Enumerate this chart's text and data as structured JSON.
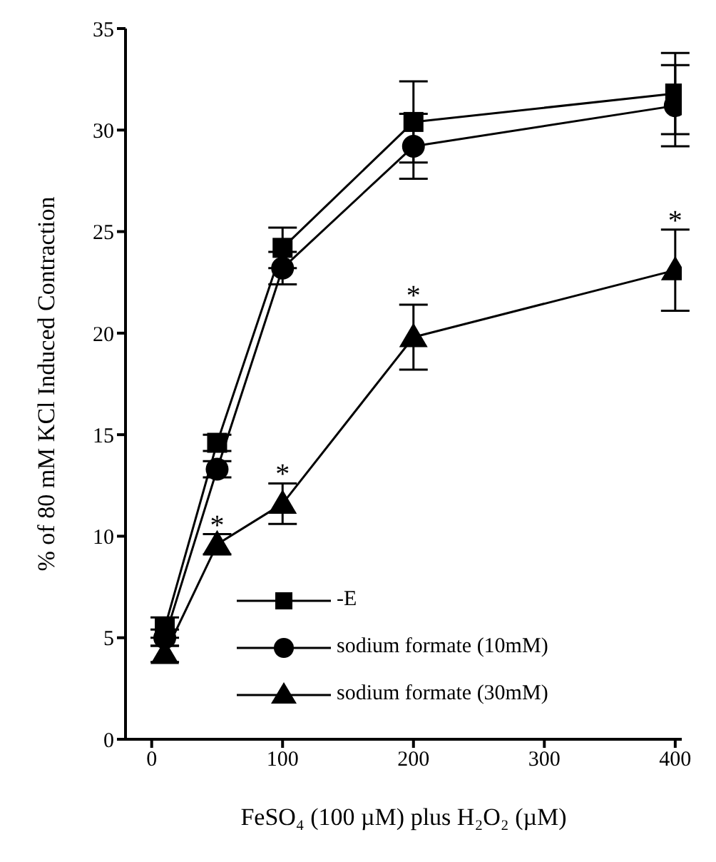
{
  "chart_data": {
    "type": "line",
    "xlabel": "FeSO₄ (100 µM) plus H₂O₂ (µM)",
    "ylabel": "% of 80 mM KCl Induced Contraction",
    "x": [
      10,
      50,
      100,
      200,
      400
    ],
    "series": [
      {
        "name": "-E",
        "color": "#000000",
        "marker": "square",
        "values": [
          5.5,
          14.6,
          24.2,
          30.4,
          31.8
        ],
        "errors": [
          0.5,
          0.4,
          1.0,
          2.0,
          2.0
        ]
      },
      {
        "name": "sodium formate (10mM)",
        "color": "#000000",
        "marker": "circle",
        "values": [
          5.0,
          13.3,
          23.2,
          29.2,
          31.2
        ],
        "errors": [
          0.4,
          0.4,
          0.8,
          1.6,
          2.0
        ]
      },
      {
        "name": "sodium formate (30mM)",
        "color": "#000000",
        "marker": "triangle",
        "values": [
          4.2,
          9.6,
          11.6,
          19.8,
          23.1
        ],
        "errors": [
          0.4,
          0.5,
          1.0,
          1.6,
          2.0
        ]
      }
    ],
    "annotations": [
      {
        "text": "*",
        "x": 50,
        "y": 9.6
      },
      {
        "text": "*",
        "x": 100,
        "y": 11.6
      },
      {
        "text": "*",
        "x": 200,
        "y": 19.8
      },
      {
        "text": "*",
        "x": 400,
        "y": 23.1
      }
    ],
    "xlim": [
      -20,
      405
    ],
    "xticks": [
      0,
      100,
      200,
      300,
      400
    ],
    "ylim": [
      0,
      35
    ],
    "yticks": [
      0,
      5,
      10,
      15,
      20,
      25,
      30,
      35
    ],
    "grid": false,
    "legend": "bottom left",
    "line_style": "solid"
  }
}
